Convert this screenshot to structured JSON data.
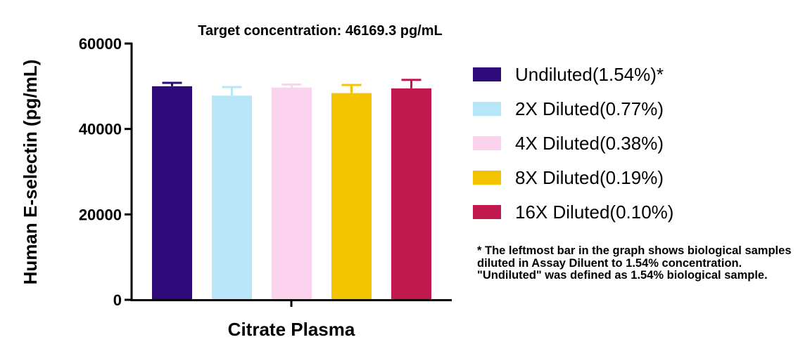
{
  "chart_data": {
    "type": "bar",
    "title": "Target concentration: 46169.3 pg/mL",
    "xlabel": "Citrate Plasma",
    "ylabel": "Human E-selectin (pg/mL)",
    "ylim": [
      0,
      60000
    ],
    "yticks": [
      0,
      20000,
      40000,
      60000
    ],
    "grid": false,
    "legend_placement": "right",
    "categories": [
      "Citrate Plasma"
    ],
    "series": [
      {
        "name": "Undiluted(1.54%)*",
        "values": [
          50000
        ],
        "error": [
          800
        ],
        "color": "#2e0a7a"
      },
      {
        "name": "2X Diluted(0.77%)",
        "values": [
          47800
        ],
        "error": [
          2000
        ],
        "color": "#b8e6f9"
      },
      {
        "name": "4X Diluted(0.38%)",
        "values": [
          49700
        ],
        "error": [
          700
        ],
        "color": "#fcd3ee"
      },
      {
        "name": "8X Diluted(0.19%)",
        "values": [
          48400
        ],
        "error": [
          1900
        ],
        "color": "#f4c300"
      },
      {
        "name": "16X Diluted(0.10%)",
        "values": [
          49500
        ],
        "error": [
          2000
        ],
        "color": "#c0194e"
      }
    ]
  },
  "footnote": "* The leftmost bar in the graph shows biological samples diluted in Assay Diluent to 1.54% concentration. \"Undiluted\" was defined as 1.54% biological sample."
}
